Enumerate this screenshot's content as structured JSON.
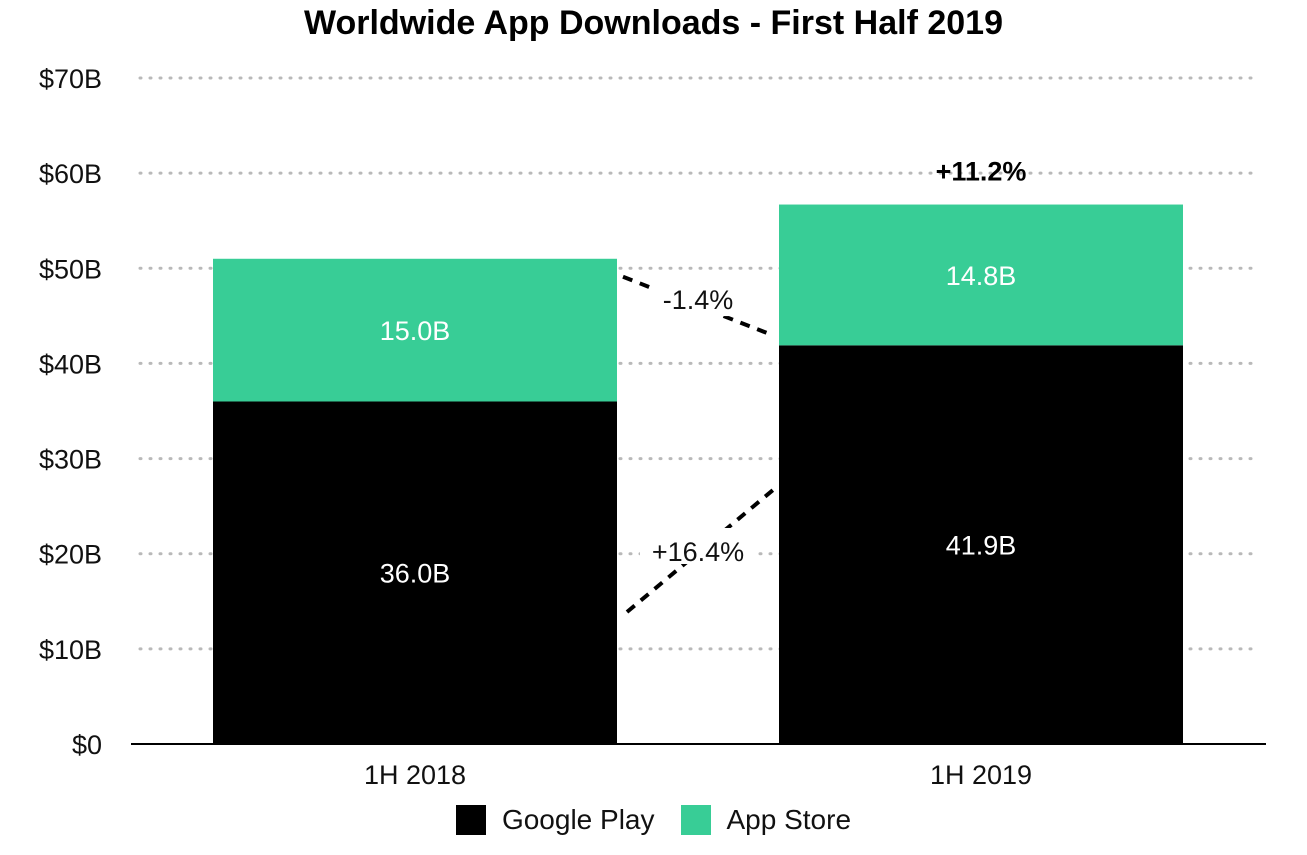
{
  "chart_data": {
    "type": "bar",
    "stacked": true,
    "title": "Worldwide App Downloads - First Half 2019",
    "categories": [
      "1H 2018",
      "1H 2019"
    ],
    "series": [
      {
        "name": "Google Play",
        "values": [
          36.0,
          41.9
        ],
        "labels": [
          "36.0B",
          "41.9B"
        ],
        "color": "#000000",
        "label_color": "#ffffff"
      },
      {
        "name": "App Store",
        "values": [
          15.0,
          14.8
        ],
        "labels": [
          "15.0B",
          "14.8B"
        ],
        "color": "#38cd96",
        "label_color": "#ffffff"
      }
    ],
    "ylim": [
      0,
      70
    ],
    "yticks": [
      0,
      10,
      20,
      30,
      40,
      50,
      60,
      70
    ],
    "ytick_labels": [
      "$0",
      "$10B",
      "$20B",
      "$30B",
      "$40B",
      "$50B",
      "$60B",
      "$70B"
    ],
    "xlabel": "",
    "ylabel": "",
    "grid": "horizontal-dotted",
    "legend": "bottom-center",
    "annotations": {
      "total_change": "+11.2%",
      "app_store_change": "-1.4%",
      "google_play_change": "+16.4%"
    }
  }
}
